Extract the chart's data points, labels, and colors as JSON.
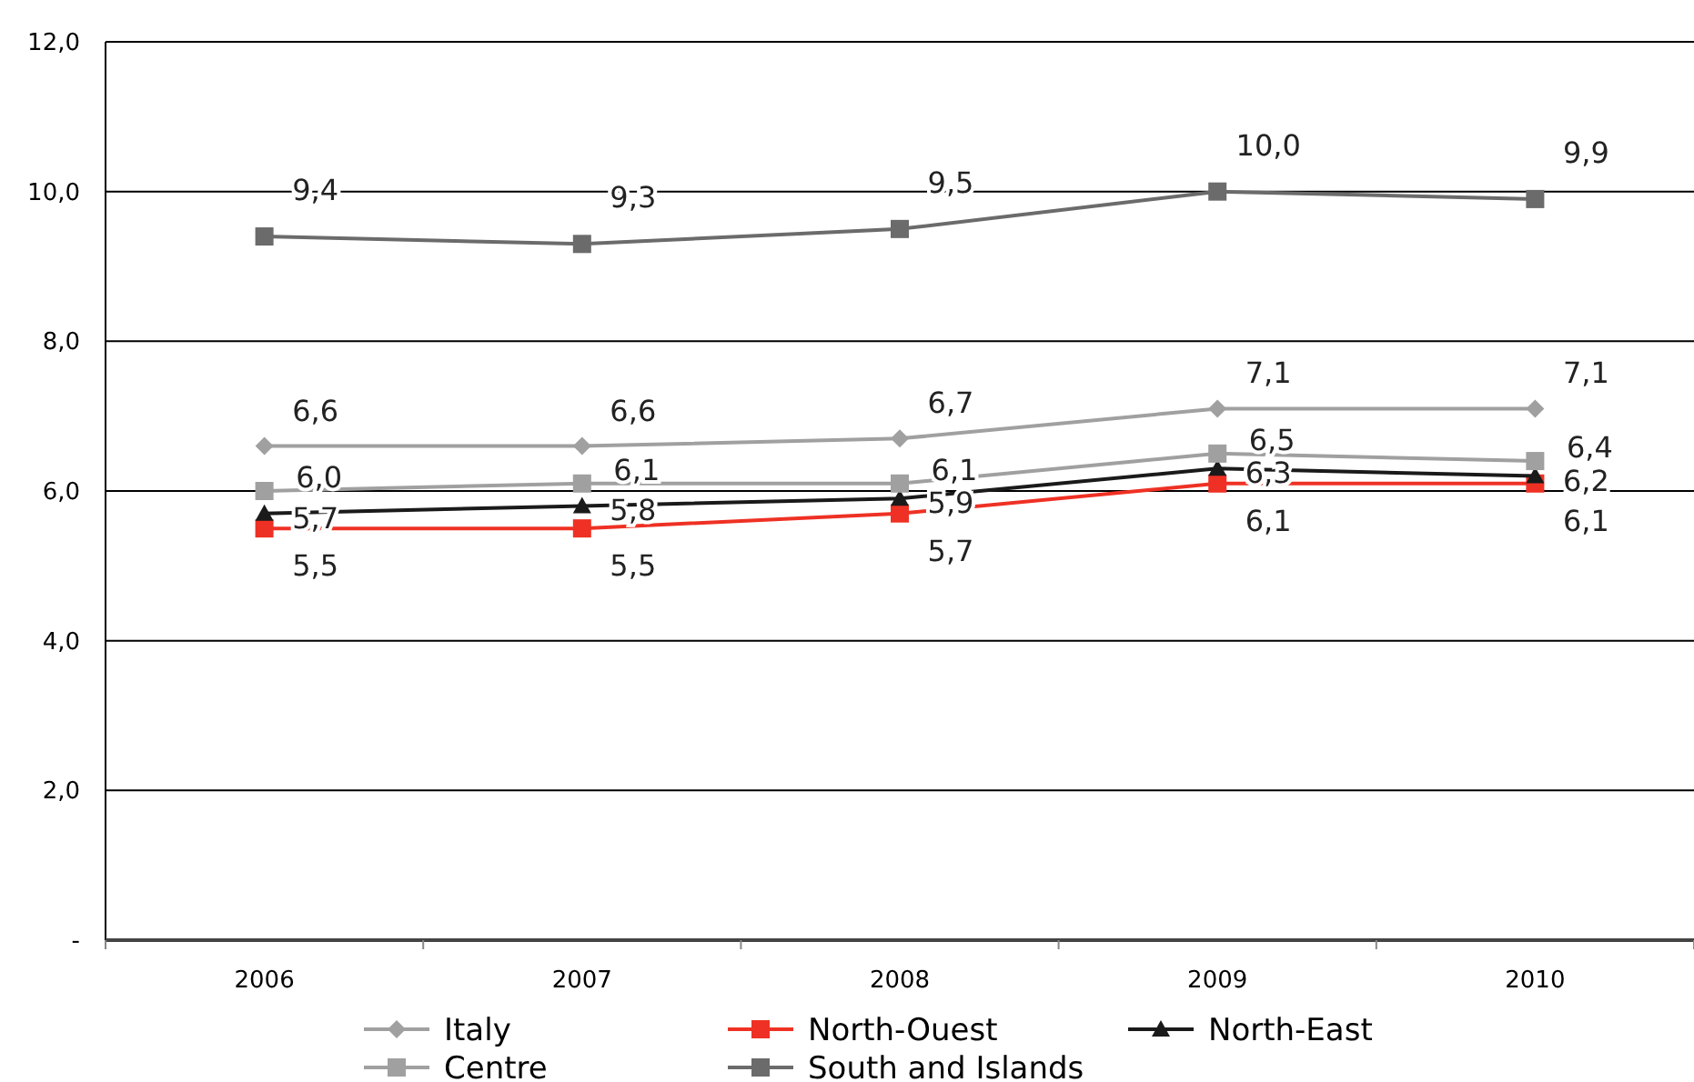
{
  "chart_data": {
    "type": "line",
    "categories": [
      "2006",
      "2007",
      "2008",
      "2009",
      "2010"
    ],
    "ylim": [
      0,
      12
    ],
    "yticks": [
      {
        "value": 0,
        "label": "-"
      },
      {
        "value": 2,
        "label": "2,0"
      },
      {
        "value": 4,
        "label": "4,0"
      },
      {
        "value": 6,
        "label": "6,0"
      },
      {
        "value": 8,
        "label": "8,0"
      },
      {
        "value": 10,
        "label": "10,0"
      },
      {
        "value": 12,
        "label": "12,0"
      }
    ],
    "grid": "y",
    "legend": "bottom",
    "series": [
      {
        "name": "Italy",
        "color": "#a0a0a0",
        "marker": "diamond",
        "values": [
          6.6,
          6.6,
          6.7,
          7.1,
          7.1
        ],
        "value_labels": [
          "6,6",
          "6,6",
          "6,7",
          "7,1",
          "7,1"
        ]
      },
      {
        "name": "North-Ouest",
        "color": "#ee3124",
        "marker": "square",
        "values": [
          5.5,
          5.5,
          5.7,
          6.1,
          6.1
        ],
        "value_labels": [
          "5,5",
          "5,5",
          "5,7",
          "6,1",
          "6,1"
        ]
      },
      {
        "name": "North-East",
        "color": "#1a1a1a",
        "marker": "triangle",
        "values": [
          5.7,
          5.8,
          5.9,
          6.3,
          6.2
        ],
        "value_labels": [
          "5,7",
          "5,8",
          "5,9",
          "6,3",
          "6,2"
        ]
      },
      {
        "name": "Centre",
        "color": "#a0a0a0",
        "marker": "square",
        "values": [
          6.0,
          6.1,
          6.1,
          6.5,
          6.4
        ],
        "value_labels": [
          "6,0",
          "6,1",
          "6,1",
          "6,5",
          "6,4"
        ]
      },
      {
        "name": "South and Islands",
        "color": "#6b6b6b",
        "marker": "square",
        "values": [
          9.4,
          9.3,
          9.5,
          10.0,
          9.9
        ],
        "value_labels": [
          "9,4",
          "9,3",
          "9,5",
          "10,0",
          "9,9"
        ]
      }
    ]
  }
}
